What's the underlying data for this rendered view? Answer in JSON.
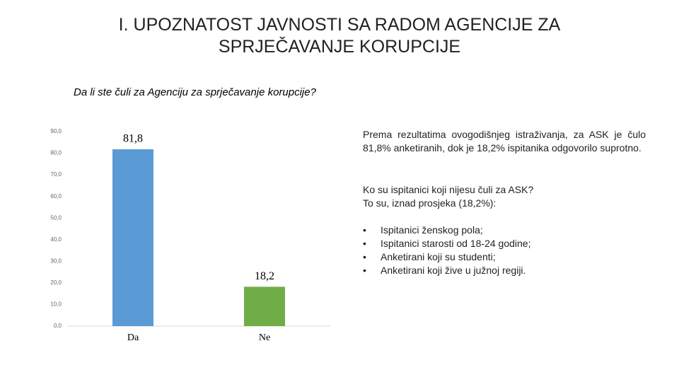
{
  "slide": {
    "title_lines": [
      "I. UPOZNATOST JAVNOSTI SA RADOM AGENCIJE ZA",
      "SPRJEČAVANJE KORUPCIJE"
    ]
  },
  "chart_data": {
    "type": "bar",
    "title": "Da li ste čuli za Agenciju za sprječavanje korupcije?",
    "categories": [
      "Da",
      "Ne"
    ],
    "values": [
      81.8,
      18.2
    ],
    "value_labels": [
      "81,8",
      "18,2"
    ],
    "colors": [
      "#5b9bd5",
      "#70ad47"
    ],
    "ylim": [
      0,
      90
    ],
    "yticks": [
      {
        "value": 0,
        "label": "0,0"
      },
      {
        "value": 10,
        "label": "10,0"
      },
      {
        "value": 20,
        "label": "20,0"
      },
      {
        "value": 30,
        "label": "30,0"
      },
      {
        "value": 40,
        "label": "40,0"
      },
      {
        "value": 50,
        "label": "50,0"
      },
      {
        "value": 60,
        "label": "60,0"
      },
      {
        "value": 70,
        "label": "70,0"
      },
      {
        "value": 80,
        "label": "80,0"
      },
      {
        "value": 90,
        "label": "90,0"
      }
    ],
    "grid": false
  },
  "text": {
    "paragraph": "Prema rezultatima ovogodišnjeg istraživanja, za ASK je čulo 81,8% anketiranih, dok je 18,2% ispitanika odgovorilo suprotno.",
    "question_lines": [
      "Ko su ispitanici koji nijesu čuli za ASK?",
      "To su, iznad prosjeka (18,2%):"
    ],
    "bullets": [
      "Ispitanici ženskog pola;",
      "Ispitanici starosti od 18-24 godine;",
      "Anketirani koji su studenti;",
      "Anketirani koji žive u južnoj regiji."
    ]
  }
}
